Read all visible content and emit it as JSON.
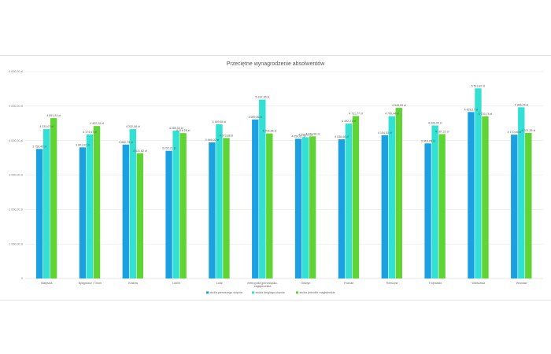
{
  "chart_data": {
    "type": "bar",
    "title": "Przeciętne wynagrodzenie absolwentów",
    "xlabel": "",
    "ylabel": "",
    "ylim": [
      0,
      6000
    ],
    "y_ticks": [
      "0",
      "1 000,00 zł",
      "2 000,00 zł",
      "3 000,00 zł",
      "4 000,00 zł",
      "5 000,00 zł",
      "6 000,00 zł"
    ],
    "y_tick_values": [
      0,
      1000,
      2000,
      3000,
      4000,
      5000,
      6000
    ],
    "grid": true,
    "legend_position": "bottom",
    "categories": [
      [
        "Białystok"
      ],
      [
        "Bydgoszcz / Toruń"
      ],
      [
        "Kraków"
      ],
      [
        "Lublin"
      ],
      [
        "Łódź"
      ],
      [
        "metropolia górnośląsko-",
        "zagłębiowska"
      ],
      [
        "Olsztyn"
      ],
      [
        "Poznań"
      ],
      [
        "Rzeszów"
      ],
      [
        "Trójmiasto"
      ],
      [
        "Warszawa"
      ],
      [
        "Wrocław"
      ]
    ],
    "series": [
      {
        "name": "studia pierwszego stopnia",
        "color": "#1ba1e2",
        "values": [
          3756.46,
          3801.92,
          3882.73,
          3702.21,
          3946.02,
          4609.86,
          4050.61,
          4036.46,
          4154.51,
          3916.78,
          4828.17,
          4170.46
        ],
        "labels": [
          "3 756,46 zł",
          "3 801,92 zł",
          "3 882,73 zł",
          "3 702,21 zł",
          "3 946,02 zł",
          "4 609,86 zł",
          "4 050,61 zł",
          "4 036,46 zł",
          "4 154,51 zł",
          "3 916,78 zł",
          "4 828,17 zł",
          "4 170,46 zł"
        ]
      },
      {
        "name": "studia drugiego stopnia",
        "color": "#33e0d4",
        "values": [
          4333.07,
          4174.67,
          4332.08,
          4285.34,
          4469.84,
          5187.36,
          4096.01,
          4492.21,
          4706.44,
          4436.05,
          5513.87,
          4965.25
        ],
        "labels": [
          "4 333,07 zł",
          "4 174,67 zł",
          "4 332,08 zł",
          "4 285,34 zł",
          "4 469,84 zł",
          "5 187,36 zł",
          "4 096,01 zł",
          "4 492,21 zł",
          "4 706,44 zł",
          "4 436,05 zł",
          "5 513,87 zł",
          "4 965,25 zł"
        ]
      },
      {
        "name": "studia jednolite magisterskie",
        "color": "#5fd434",
        "values": [
          4651.24,
          4422.24,
          3631.62,
          4216.28,
          4073.88,
          4206.36,
          4121.96,
          4711.77,
          4949.09,
          4187.21,
          4703.78,
          4221.35
        ],
        "labels": [
          "4 651,24 zł",
          "4 422,24 zł",
          "3 631,62 zł",
          "4 216,28 zł",
          "4 073,88 zł",
          "4 206,36 zł",
          "4 121,96 zł",
          "4 711,77 zł",
          "4 949,09 zł",
          "4 187,21 zł",
          "4 703,78 zł",
          "4 221,35 zł"
        ]
      }
    ]
  }
}
